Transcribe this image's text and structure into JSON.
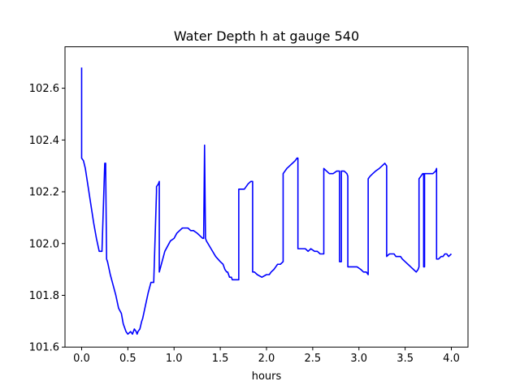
{
  "chart_data": {
    "type": "line",
    "title": "Water Depth h at gauge 540",
    "xlabel": "hours",
    "ylabel": "",
    "xlim": [
      -0.18,
      4.18
    ],
    "ylim": [
      101.6,
      102.76
    ],
    "xticks": [
      "0.0",
      "0.5",
      "1.0",
      "1.5",
      "2.0",
      "2.5",
      "3.0",
      "3.5",
      "4.0"
    ],
    "xtick_values": [
      0.0,
      0.5,
      1.0,
      1.5,
      2.0,
      2.5,
      3.0,
      3.5,
      4.0
    ],
    "yticks": [
      "101.6",
      "101.8",
      "102.0",
      "102.2",
      "102.4",
      "102.6"
    ],
    "ytick_values": [
      101.6,
      101.8,
      102.0,
      102.2,
      102.4,
      102.6
    ],
    "grid": false,
    "series": [
      {
        "color": "#0000ff",
        "x": [
          0.0,
          0.0,
          0.0,
          0.02,
          0.04,
          0.07,
          0.1,
          0.13,
          0.16,
          0.19,
          0.22,
          0.25,
          0.26,
          0.26,
          0.27,
          0.28,
          0.28,
          0.31,
          0.34,
          0.37,
          0.4,
          0.43,
          0.45,
          0.48,
          0.5,
          0.53,
          0.55,
          0.57,
          0.59,
          0.6,
          0.61,
          0.63,
          0.65,
          0.66,
          0.69,
          0.72,
          0.75,
          0.78,
          0.81,
          0.81,
          0.83,
          0.84,
          0.84,
          0.87,
          0.9,
          0.93,
          0.96,
          1.0,
          1.03,
          1.06,
          1.09,
          1.12,
          1.15,
          1.18,
          1.21,
          1.25,
          1.28,
          1.31,
          1.32,
          1.33,
          1.33,
          1.34,
          1.35,
          1.4,
          1.45,
          1.5,
          1.53,
          1.55,
          1.57,
          1.58,
          1.6,
          1.62,
          1.63,
          1.65,
          1.67,
          1.7,
          1.7,
          1.73,
          1.76,
          1.78,
          1.8,
          1.83,
          1.85,
          1.85,
          1.87,
          1.9,
          1.95,
          2.0,
          2.03,
          2.05,
          2.08,
          2.1,
          2.12,
          2.15,
          2.18,
          2.18,
          2.22,
          2.25,
          2.28,
          2.31,
          2.33,
          2.34,
          2.34,
          2.38,
          2.42,
          2.45,
          2.48,
          2.52,
          2.55,
          2.58,
          2.61,
          2.62,
          2.62,
          2.65,
          2.68,
          2.72,
          2.76,
          2.78,
          2.79,
          2.79,
          2.81,
          2.81,
          2.84,
          2.87,
          2.88,
          2.88,
          2.9,
          2.92,
          2.95,
          2.98,
          3.02,
          3.05,
          3.08,
          3.1,
          3.1,
          3.12,
          3.15,
          3.18,
          3.22,
          3.25,
          3.28,
          3.3,
          3.3,
          3.33,
          3.36,
          3.38,
          3.4,
          3.42,
          3.43,
          3.45,
          3.47,
          3.5,
          3.53,
          3.56,
          3.59,
          3.62,
          3.64,
          3.65,
          3.65,
          3.67,
          3.69,
          3.7,
          3.7,
          3.71,
          3.71,
          3.73,
          3.76,
          3.8,
          3.83,
          3.84,
          3.84,
          3.86,
          3.89,
          3.91,
          3.93,
          3.95,
          3.97,
          4.0
        ],
        "y": [
          102.68,
          102.68,
          102.33,
          102.32,
          102.29,
          102.22,
          102.15,
          102.08,
          102.02,
          101.97,
          101.97,
          102.31,
          102.31,
          102.29,
          101.94,
          101.93,
          101.93,
          101.88,
          101.84,
          101.8,
          101.75,
          101.73,
          101.69,
          101.66,
          101.65,
          101.66,
          101.65,
          101.67,
          101.66,
          101.65,
          101.66,
          101.67,
          101.7,
          101.71,
          101.76,
          101.81,
          101.85,
          101.85,
          102.2,
          102.22,
          102.23,
          102.24,
          101.89,
          101.93,
          101.97,
          101.99,
          102.01,
          102.02,
          102.04,
          102.05,
          102.06,
          102.06,
          102.06,
          102.05,
          102.05,
          102.04,
          102.03,
          102.02,
          102.02,
          102.38,
          102.37,
          102.02,
          102.01,
          101.98,
          101.95,
          101.93,
          101.92,
          101.9,
          101.89,
          101.89,
          101.87,
          101.87,
          101.86,
          101.86,
          101.86,
          101.86,
          102.21,
          102.21,
          102.21,
          102.22,
          102.23,
          102.24,
          102.24,
          101.89,
          101.89,
          101.88,
          101.87,
          101.88,
          101.88,
          101.89,
          101.9,
          101.91,
          101.92,
          101.92,
          101.93,
          102.27,
          102.29,
          102.3,
          102.31,
          102.32,
          102.33,
          102.33,
          101.98,
          101.98,
          101.98,
          101.97,
          101.98,
          101.97,
          101.97,
          101.96,
          101.96,
          101.96,
          102.29,
          102.28,
          102.27,
          102.27,
          102.28,
          102.28,
          102.28,
          101.93,
          101.93,
          102.28,
          102.28,
          102.27,
          102.26,
          101.91,
          101.91,
          101.91,
          101.91,
          101.91,
          101.9,
          101.89,
          101.89,
          101.88,
          102.25,
          102.26,
          102.27,
          102.28,
          102.29,
          102.3,
          102.31,
          102.3,
          101.95,
          101.96,
          101.96,
          101.96,
          101.95,
          101.95,
          101.95,
          101.95,
          101.94,
          101.93,
          101.92,
          101.91,
          101.9,
          101.89,
          101.9,
          101.91,
          102.25,
          102.26,
          102.27,
          102.27,
          101.91,
          101.91,
          102.27,
          102.27,
          102.27,
          102.27,
          102.28,
          102.29,
          101.94,
          101.94,
          101.95,
          101.95,
          101.96,
          101.96,
          101.95,
          101.96
        ]
      }
    ]
  }
}
